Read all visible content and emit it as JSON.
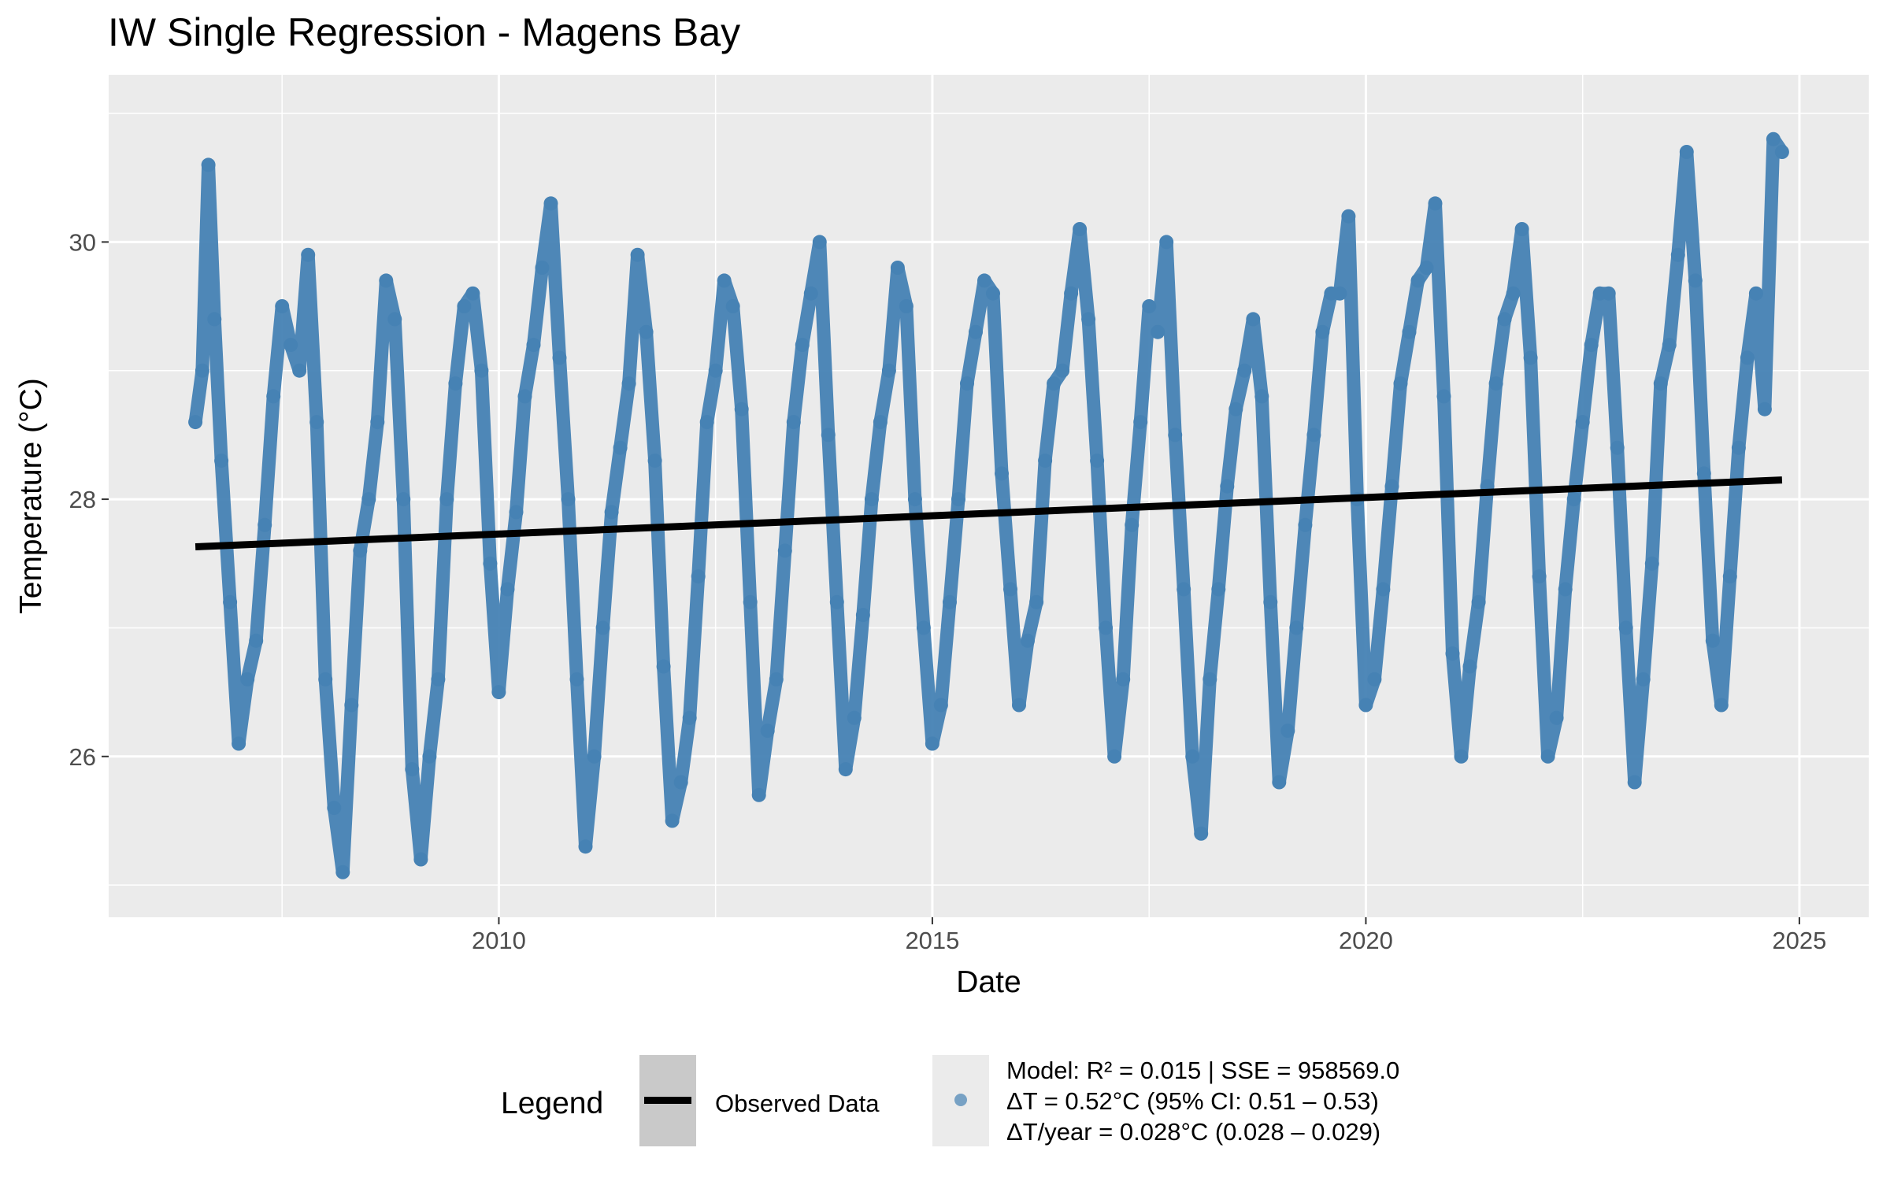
{
  "chart_data": {
    "type": "scatter",
    "title": "IW Single Regression - Magens Bay",
    "xlabel": "Date",
    "ylabel": "Temperature (°C)",
    "xlim": [
      2005.5,
      2025.8
    ],
    "ylim": [
      24.75,
      31.3
    ],
    "x_ticks": [
      2010,
      2015,
      2020,
      2025
    ],
    "x_tick_labels": [
      "2010",
      "2015",
      "2020",
      "2025"
    ],
    "y_ticks": [
      26,
      28,
      30
    ],
    "y_tick_labels": [
      "26",
      "28",
      "30"
    ],
    "grid": true,
    "legend_position": "bottom",
    "point_color": "#4682b4",
    "line_color": "#000000",
    "series": [
      {
        "name": "Model: R² = 0.015 | SSE = 958569.0",
        "kind": "points",
        "x": [
          2006.5,
          2006.58,
          2006.65,
          2006.72,
          2006.8,
          2006.9,
          2007.0,
          2007.1,
          2007.2,
          2007.3,
          2007.4,
          2007.5,
          2007.6,
          2007.7,
          2007.8,
          2007.9,
          2008.0,
          2008.1,
          2008.2,
          2008.3,
          2008.4,
          2008.5,
          2008.6,
          2008.7,
          2008.8,
          2008.9,
          2009.0,
          2009.1,
          2009.2,
          2009.3,
          2009.4,
          2009.5,
          2009.6,
          2009.7,
          2009.8,
          2009.9,
          2010.0,
          2010.1,
          2010.2,
          2010.3,
          2010.4,
          2010.5,
          2010.6,
          2010.7,
          2010.8,
          2010.9,
          2011.0,
          2011.1,
          2011.2,
          2011.3,
          2011.4,
          2011.5,
          2011.6,
          2011.7,
          2011.8,
          2011.9,
          2012.0,
          2012.1,
          2012.2,
          2012.3,
          2012.4,
          2012.5,
          2012.6,
          2012.7,
          2012.8,
          2012.9,
          2013.0,
          2013.1,
          2013.2,
          2013.3,
          2013.4,
          2013.5,
          2013.6,
          2013.7,
          2013.8,
          2013.9,
          2014.0,
          2014.1,
          2014.2,
          2014.3,
          2014.4,
          2014.5,
          2014.6,
          2014.7,
          2014.8,
          2014.9,
          2015.0,
          2015.1,
          2015.2,
          2015.3,
          2015.4,
          2015.5,
          2015.6,
          2015.7,
          2015.8,
          2015.9,
          2016.0,
          2016.1,
          2016.2,
          2016.3,
          2016.4,
          2016.5,
          2016.6,
          2016.7,
          2016.8,
          2016.9,
          2017.0,
          2017.1,
          2017.2,
          2017.3,
          2017.4,
          2017.5,
          2017.6,
          2017.7,
          2017.8,
          2017.9,
          2018.0,
          2018.1,
          2018.2,
          2018.3,
          2018.4,
          2018.5,
          2018.6,
          2018.7,
          2018.8,
          2018.9,
          2019.0,
          2019.1,
          2019.2,
          2019.3,
          2019.4,
          2019.5,
          2019.6,
          2019.7,
          2019.8,
          2019.9,
          2020.0,
          2020.1,
          2020.2,
          2020.3,
          2020.4,
          2020.5,
          2020.6,
          2020.7,
          2020.8,
          2020.9,
          2021.0,
          2021.1,
          2021.2,
          2021.3,
          2021.4,
          2021.5,
          2021.6,
          2021.7,
          2021.8,
          2021.9,
          2022.0,
          2022.1,
          2022.2,
          2022.3,
          2022.4,
          2022.5,
          2022.6,
          2022.7,
          2022.8,
          2022.9,
          2023.0,
          2023.1,
          2023.2,
          2023.3,
          2023.4,
          2023.5,
          2023.6,
          2023.7,
          2023.8,
          2023.9,
          2024.0,
          2024.1,
          2024.2,
          2024.3,
          2024.4,
          2024.5,
          2024.6,
          2024.7,
          2024.8
        ],
        "y": [
          28.6,
          29.0,
          30.6,
          29.4,
          28.3,
          27.2,
          26.1,
          26.6,
          26.9,
          27.8,
          28.8,
          29.5,
          29.2,
          29.0,
          29.9,
          28.6,
          26.6,
          25.6,
          25.1,
          26.4,
          27.6,
          28.0,
          28.6,
          29.7,
          29.4,
          28.0,
          25.9,
          25.2,
          26.0,
          26.6,
          28.0,
          28.9,
          29.5,
          29.6,
          29.0,
          27.5,
          26.5,
          27.3,
          27.9,
          28.8,
          29.2,
          29.8,
          30.3,
          29.1,
          28.0,
          26.6,
          25.3,
          26.0,
          27.0,
          27.9,
          28.4,
          28.9,
          29.9,
          29.3,
          28.3,
          26.7,
          25.5,
          25.8,
          26.3,
          27.4,
          28.6,
          29.0,
          29.7,
          29.5,
          28.7,
          27.2,
          25.7,
          26.2,
          26.6,
          27.6,
          28.6,
          29.2,
          29.6,
          30.0,
          28.5,
          27.2,
          25.9,
          26.3,
          27.1,
          28.0,
          28.6,
          29.0,
          29.8,
          29.5,
          28.0,
          27.0,
          26.1,
          26.4,
          27.2,
          28.0,
          28.9,
          29.3,
          29.7,
          29.6,
          28.2,
          27.3,
          26.4,
          26.9,
          27.2,
          28.3,
          28.9,
          29.0,
          29.6,
          30.1,
          29.4,
          28.3,
          27.0,
          26.0,
          26.6,
          27.8,
          28.6,
          29.5,
          29.3,
          30.0,
          28.5,
          27.3,
          26.0,
          25.4,
          26.6,
          27.3,
          28.1,
          28.7,
          29.0,
          29.4,
          28.8,
          27.2,
          25.8,
          26.2,
          27.0,
          27.8,
          28.5,
          29.3,
          29.6,
          29.6,
          30.2,
          28.0,
          26.4,
          26.6,
          27.3,
          28.1,
          28.9,
          29.3,
          29.7,
          29.8,
          30.3,
          28.8,
          26.8,
          26.0,
          26.7,
          27.2,
          28.1,
          28.9,
          29.4,
          29.6,
          30.1,
          29.1,
          27.4,
          26.0,
          26.3,
          27.3,
          28.0,
          28.6,
          29.2,
          29.6,
          29.6,
          28.4,
          27.0,
          25.8,
          26.6,
          27.5,
          28.9,
          29.2,
          29.9,
          30.7,
          29.7,
          28.2,
          26.9,
          26.4,
          27.4,
          28.4,
          29.1,
          29.6,
          28.7,
          30.8,
          30.7
        ]
      },
      {
        "name": "Observed Data",
        "kind": "line",
        "x": [
          2006.5,
          2024.8
        ],
        "y": [
          27.63,
          28.15
        ]
      }
    ],
    "legend": {
      "title": "Legend",
      "line_label": "Observed Data",
      "point_label_lines": [
        "Model: R² = 0.015 | SSE = 958569.0",
        "ΔT = 0.52°C (95% CI: 0.51 – 0.53)",
        "ΔT/year = 0.028°C (0.028 – 0.029)"
      ]
    }
  }
}
